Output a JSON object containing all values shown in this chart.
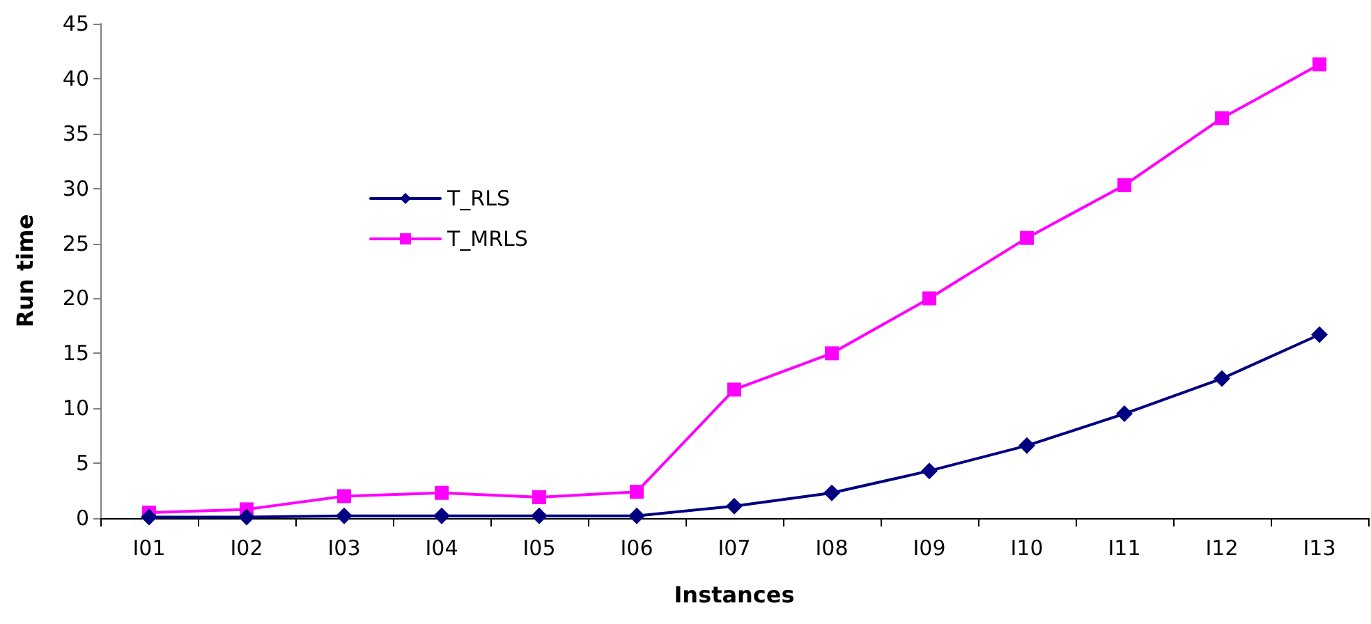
{
  "chart_data": {
    "type": "line",
    "xlabel": "Instances",
    "ylabel": "Run time",
    "categories": [
      "I01",
      "I02",
      "I03",
      "I04",
      "I05",
      "I06",
      "I07",
      "I08",
      "I09",
      "I10",
      "I11",
      "I12",
      "I13"
    ],
    "series": [
      {
        "name": "T_RLS",
        "color": "#000080",
        "marker": "diamond",
        "values": [
          0.1,
          0.1,
          0.2,
          0.2,
          0.2,
          0.2,
          1.1,
          2.3,
          4.3,
          6.6,
          9.5,
          12.7,
          16.7
        ]
      },
      {
        "name": "T_MRLS",
        "color": "#ff00ff",
        "marker": "square",
        "values": [
          0.5,
          0.8,
          2.0,
          2.3,
          1.9,
          2.4,
          11.7,
          15.0,
          20.0,
          25.5,
          30.3,
          36.4,
          41.3
        ]
      }
    ],
    "ylim": [
      0,
      45
    ],
    "yticks": [
      0,
      5,
      10,
      15,
      20,
      25,
      30,
      35,
      40,
      45
    ],
    "grid": false,
    "legend": "left",
    "line_style": "solid"
  }
}
